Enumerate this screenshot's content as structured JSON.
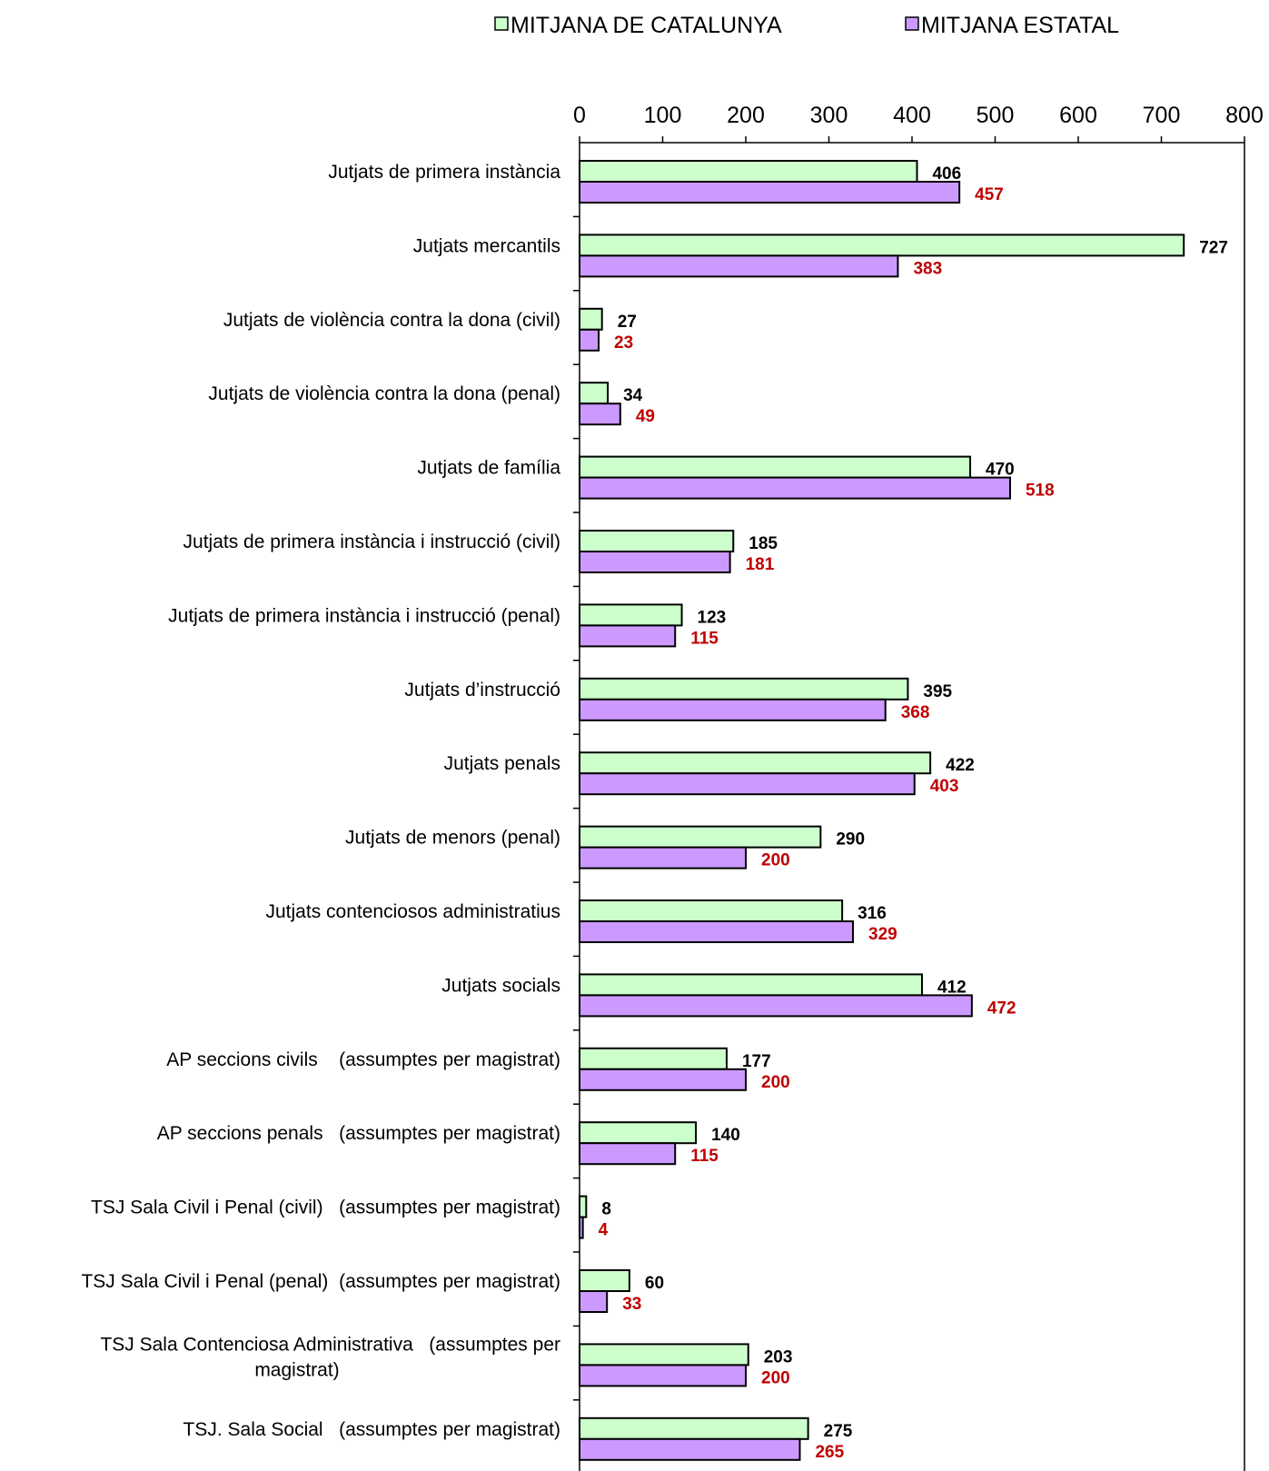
{
  "chart_data": {
    "type": "bar",
    "orientation": "horizontal",
    "xlim": [
      0,
      800
    ],
    "ticks": [
      0,
      100,
      200,
      300,
      400,
      500,
      600,
      700,
      800
    ],
    "legend_position": "top",
    "grid": false,
    "colors": {
      "series_a": "#ccffcc",
      "series_b": "#cc99ff",
      "label_a": "#000000",
      "label_b": "#c00000"
    },
    "categories": [
      [
        "Jutjats de primera instància"
      ],
      [
        "Jutjats mercantils"
      ],
      [
        "Jutjats de violència contra la dona (civil)"
      ],
      [
        "Jutjats de violència contra la dona (penal)"
      ],
      [
        "Jutjats de família"
      ],
      [
        "Jutjats de primera instància i instrucció (civil)"
      ],
      [
        "Jutjats de primera instància i instrucció (penal)"
      ],
      [
        "Jutjats d’instrucció"
      ],
      [
        "Jutjats penals"
      ],
      [
        "Jutjats de menors (penal)"
      ],
      [
        "Jutjats contenciosos administratius"
      ],
      [
        "Jutjats socials"
      ],
      [
        "AP seccions civils    (assumptes per magistrat)"
      ],
      [
        "AP seccions penals   (assumptes per magistrat)"
      ],
      [
        "TSJ Sala Civil i Penal (civil)   (assumptes per magistrat)"
      ],
      [
        "TSJ Sala Civil i Penal (penal)  (assumptes per magistrat)"
      ],
      [
        "TSJ Sala Contenciosa Administrativa   (assumptes per",
        "magistrat)"
      ],
      [
        "TSJ. Sala Social   (assumptes per magistrat)"
      ]
    ],
    "series": [
      {
        "name": "MITJANA DE CATALUNYA",
        "values": [
          406,
          727,
          27,
          34,
          470,
          185,
          123,
          395,
          422,
          290,
          316,
          412,
          177,
          140,
          8,
          60,
          203,
          275
        ]
      },
      {
        "name": "MITJANA ESTATAL",
        "values": [
          457,
          383,
          23,
          49,
          518,
          181,
          115,
          368,
          403,
          200,
          329,
          472,
          200,
          115,
          4,
          33,
          200,
          265
        ]
      }
    ]
  }
}
